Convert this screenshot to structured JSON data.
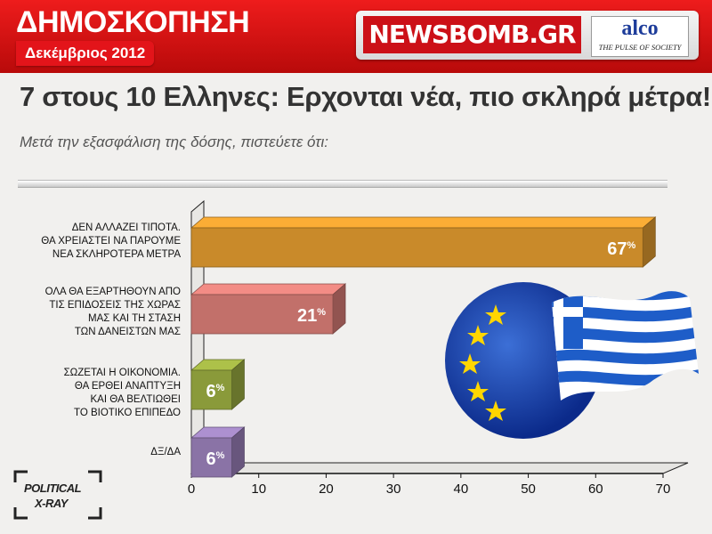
{
  "header": {
    "title": "ΔΗΜΟΣΚΟΠΗΣΗ",
    "date": "Δεκέμβριος 2012",
    "newsbomb_logo": "NEWSBOMB.GR",
    "alco_logo": "alco",
    "alco_tagline": "THE PULSE OF SOCIETY"
  },
  "headline": "7 στους 10 Ελληνες: Ερχονται νέα, πιο σκληρά μέτρα!",
  "question": "Μετά την εξασφάλιση της δόσης, πιστεύετε ότι:",
  "badge": {
    "line1": "POLITICAL",
    "line2": "X-RAY"
  },
  "colors": {
    "header_red": "#d11317",
    "bar_orange": "#c98a2a",
    "bar_red": "#c2706a",
    "bar_green": "#8a9a3a",
    "bar_purple": "#8a73a6"
  },
  "chart_data": {
    "type": "bar",
    "orientation": "horizontal",
    "categories": [
      "ΔΕΝ ΑΛΛΑΖΕΙ ΤΙΠΟΤΑ.\nΘΑ ΧΡΕΙΑΣΤΕΙ ΝΑ ΠΑΡΟΥΜΕ\nΝΕΑ ΣΚΛΗΡΟΤΕΡΑ ΜΕΤΡΑ",
      "ΟΛΑ ΘΑ ΕΞΑΡΤΗΘΟΥΝ ΑΠΟ\nΤΙΣ ΕΠΙΔΟΣΕΙΣ ΤΗΣ ΧΩΡΑΣ\nΜΑΣ ΚΑΙ ΤΗ ΣΤΑΣΗ\nΤΩΝ ΔΑΝΕΙΣΤΩΝ ΜΑΣ",
      "ΣΩΖΕΤΑΙ Η ΟΙΚΟΝΟΜΙΑ.\nΘΑ ΕΡΘΕΙ ΑΝΑΠΤΥΞΗ\nΚΑΙ ΘΑ ΒΕΛΤΙΩΘΕΙ\nΤΟ ΒΙΟΤΙΚΟ ΕΠΙΠΕΔΟ",
      "ΔΞ/ΔΑ"
    ],
    "values": [
      67,
      21,
      6,
      6
    ],
    "value_labels": [
      "67",
      "21",
      "6",
      "6"
    ],
    "unit": "%",
    "bar_colors": [
      "#c98a2a",
      "#c2706a",
      "#8a9a3a",
      "#8a73a6"
    ],
    "xlim": [
      0,
      70
    ],
    "ticks": [
      "0",
      "10",
      "20",
      "30",
      "40",
      "50",
      "60",
      "70"
    ],
    "grid": false,
    "legend": "none"
  }
}
